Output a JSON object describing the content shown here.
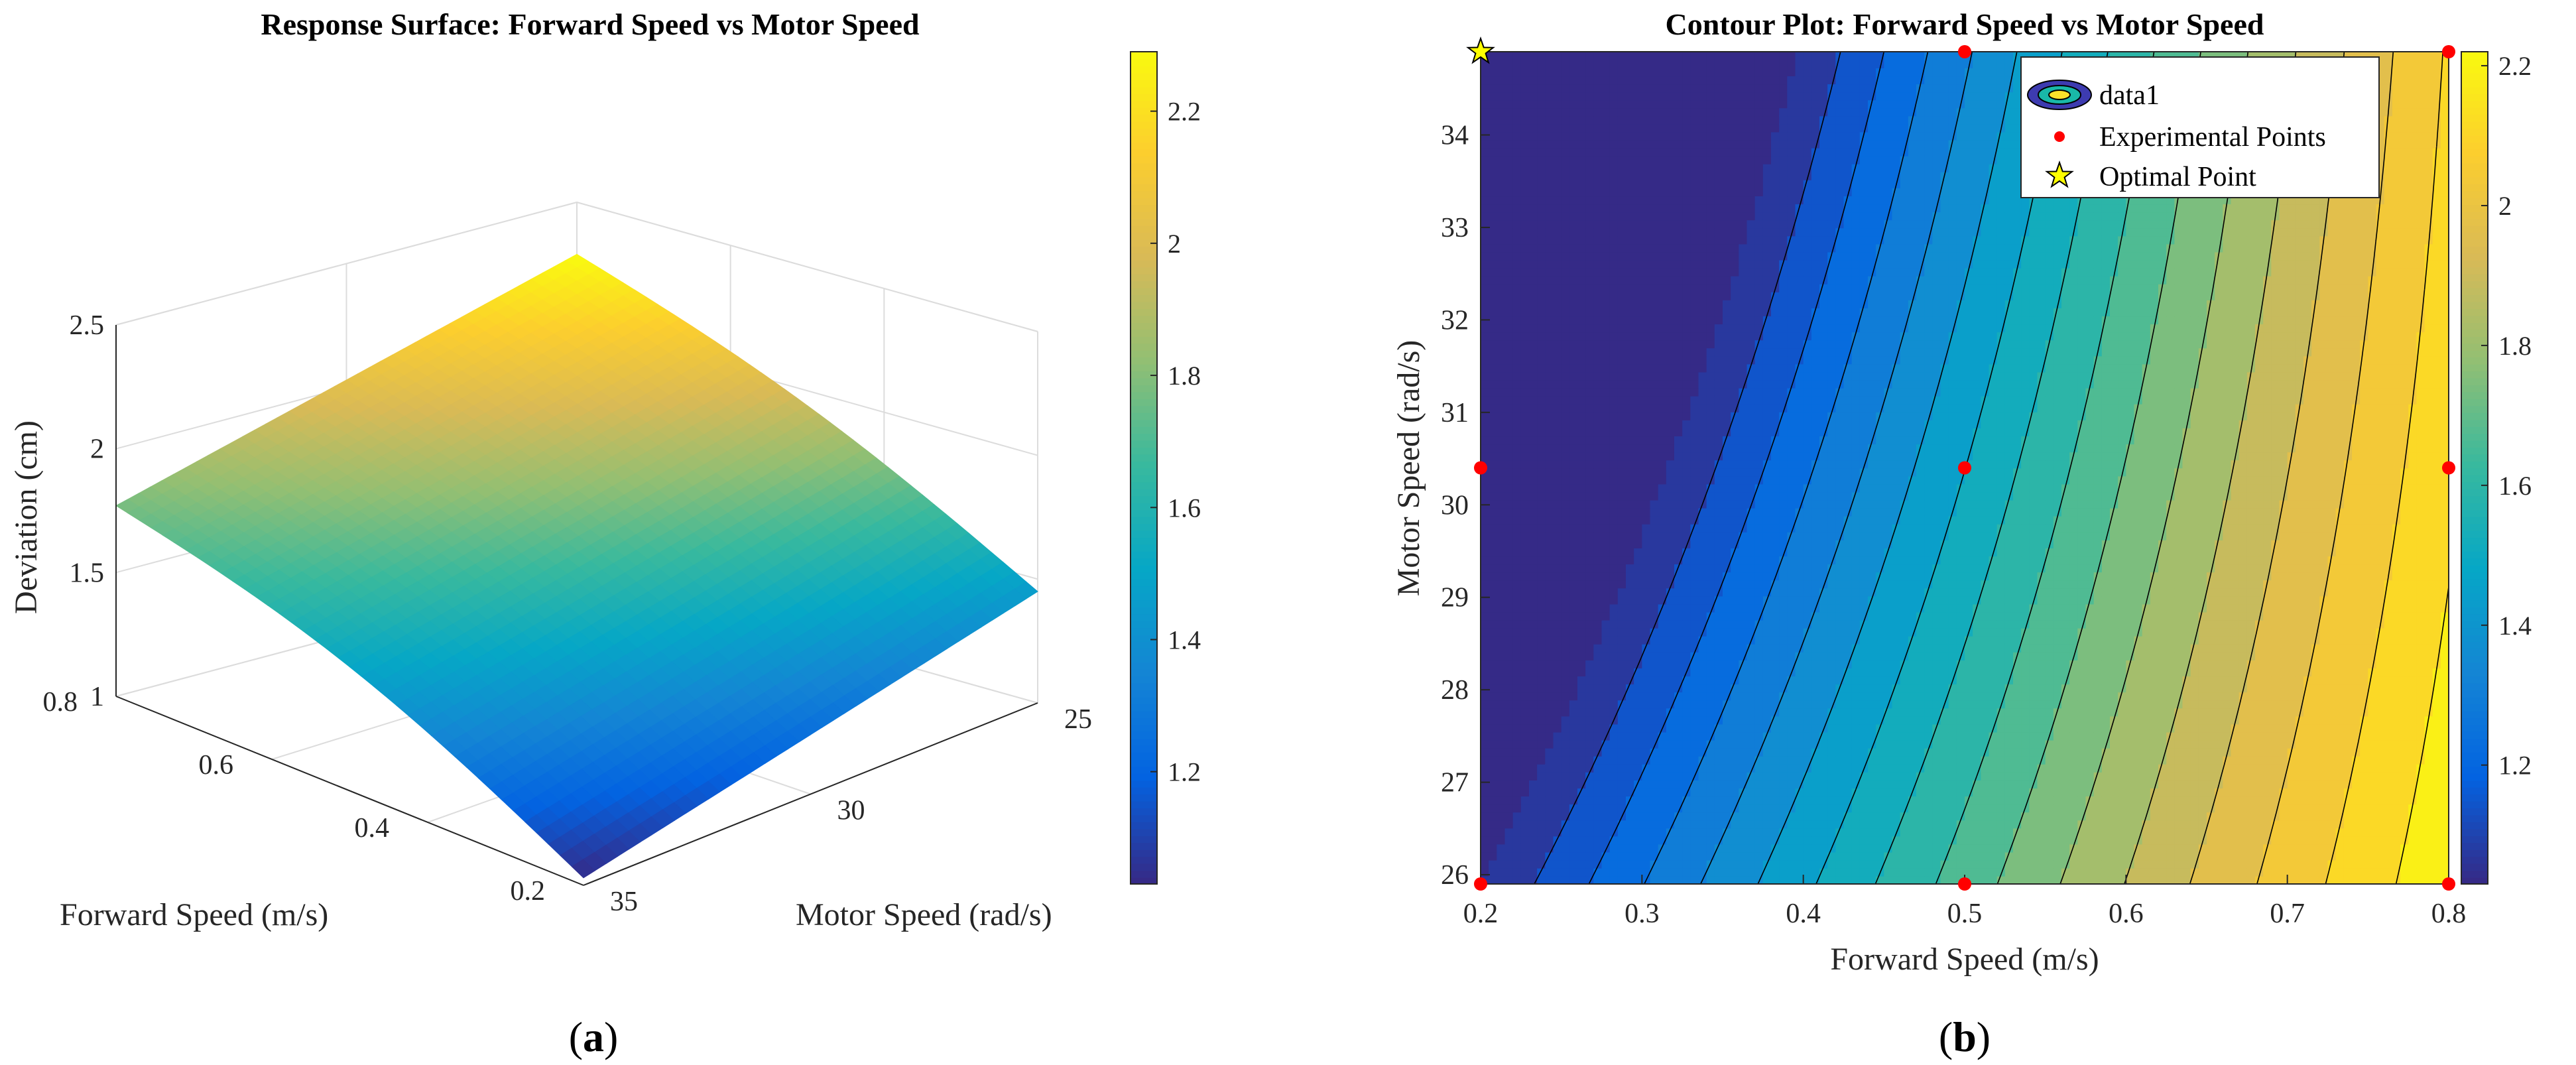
{
  "chart_data": [
    {
      "type": "surface",
      "title": "Response Surface: Forward Speed vs Motor Speed",
      "xlabel": "Forward Speed (m/s)",
      "ylabel": "Motor Speed (rad/s)",
      "zlabel": "Deviation (cm)",
      "xlim": [
        0.2,
        0.8
      ],
      "ylim": [
        25,
        35
      ],
      "zlim": [
        1,
        2.5
      ],
      "x_ticks": [
        "0.2",
        "0.4",
        "0.6",
        "0.8"
      ],
      "y_ticks": [
        "25",
        "30",
        "35"
      ],
      "z_ticks": [
        "1",
        "1.5",
        "2",
        "2.5"
      ],
      "colorbar_ticks": [
        "1.2",
        "1.4",
        "1.6",
        "1.8",
        "2",
        "2.2"
      ],
      "colorbar_range": [
        1.03,
        2.29
      ],
      "corners": [
        {
          "x": 0.2,
          "y": 35,
          "z": 1.03
        },
        {
          "x": 0.2,
          "y": 25,
          "z": 1.45
        },
        {
          "x": 0.8,
          "y": 35,
          "z": 1.77
        },
        {
          "x": 0.8,
          "y": 25,
          "z": 2.29
        }
      ],
      "caption": "a",
      "grid": true
    },
    {
      "type": "contour",
      "title": "Contour Plot: Forward Speed vs Motor Speed",
      "xlabel": "Forward Speed (m/s)",
      "ylabel": "Motor Speed (rad/s)",
      "xlim": [
        0.2,
        0.8
      ],
      "ylim": [
        25.9,
        34.9
      ],
      "x_ticks": [
        "0.2",
        "0.3",
        "0.4",
        "0.5",
        "0.6",
        "0.7",
        "0.8"
      ],
      "y_ticks": [
        "26",
        "27",
        "28",
        "29",
        "30",
        "31",
        "32",
        "33",
        "34"
      ],
      "colorbar_ticks": [
        "1.2",
        "1.4",
        "1.6",
        "1.8",
        "2",
        "2.2"
      ],
      "colorbar_range": [
        1.03,
        2.22
      ],
      "experimental_points": [
        {
          "x": 0.2,
          "y": 25.9
        },
        {
          "x": 0.5,
          "y": 25.9
        },
        {
          "x": 0.8,
          "y": 25.9
        },
        {
          "x": 0.2,
          "y": 30.4
        },
        {
          "x": 0.5,
          "y": 30.4
        },
        {
          "x": 0.8,
          "y": 30.4
        },
        {
          "x": 0.5,
          "y": 34.9
        },
        {
          "x": 0.8,
          "y": 34.9
        }
      ],
      "optimal_point": {
        "x": 0.2,
        "y": 34.9
      },
      "legend": [
        "data1",
        "Experimental Points",
        "Optimal Point"
      ],
      "legend_position": "top-right",
      "caption": "b",
      "grid": false
    }
  ],
  "colors": {
    "point_red": "#ff0000",
    "star_yellow": "#ffff00",
    "contour_line": "#000000"
  }
}
